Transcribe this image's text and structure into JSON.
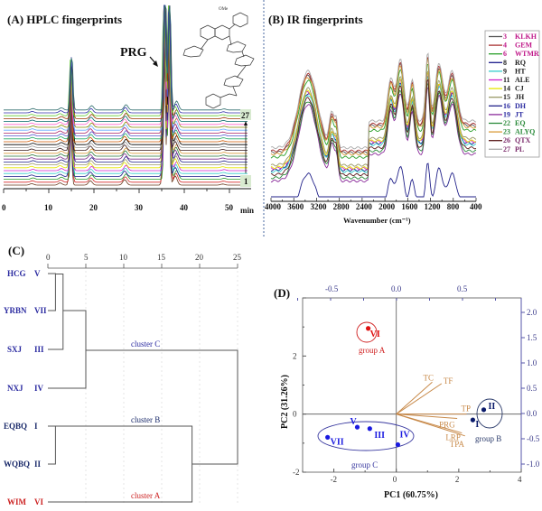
{
  "chart_data": [
    {
      "panel": "A",
      "type": "line",
      "title": "(A) HPLC fingerprints",
      "xlabel": "min",
      "ylabel": "",
      "xlim": [
        0,
        55
      ],
      "xticks": [
        0,
        10,
        20,
        30,
        40,
        50
      ],
      "annotation": "PRG",
      "stack_labels": {
        "top": "27",
        "bottom": "1"
      },
      "n_series": 27,
      "peaks_min": [
        6.2,
        12.5,
        14.8,
        19.2,
        26.8,
        35.5,
        36.5,
        38.0,
        48.5
      ],
      "peak_heights": [
        0.04,
        0.06,
        0.7,
        0.12,
        0.15,
        1.0,
        0.85,
        0.25,
        0.03
      ],
      "series_colors": [
        "#6b3a1e",
        "#d62a2a",
        "#2a9a2a",
        "#1a1a8a",
        "#33cccc",
        "#cc22cc",
        "#e6e600",
        "#999966",
        "#22228a",
        "#7a2a8a",
        "#2a7a3a",
        "#d89a3a",
        "#3a1a1a",
        "#999999",
        "#000000",
        "#cc5500",
        "#22aa66",
        "#5555cc",
        "#aa2266",
        "#66aaff",
        "#888800",
        "#ff66cc",
        "#006666",
        "#993300",
        "#66cc33",
        "#3333aa",
        "#2a6a6a"
      ]
    },
    {
      "panel": "B",
      "type": "line",
      "title": "(B) IR fingerprints",
      "xlabel": "Wavenumber (cm⁻¹)",
      "xlim": [
        4000,
        400
      ],
      "xticks": [
        4000,
        3600,
        3200,
        2800,
        2400,
        2000,
        1600,
        1200,
        800,
        400
      ],
      "legend_position": "right",
      "legend": [
        {
          "num": "3",
          "name": "KLKH",
          "color": "#555555",
          "label_color": "#c0198a"
        },
        {
          "num": "4",
          "name": "GEM",
          "color": "#a83232",
          "label_color": "#c0198a"
        },
        {
          "num": "6",
          "name": "WTMR",
          "color": "#2aa02a",
          "label_color": "#c0198a"
        },
        {
          "num": "8",
          "name": "RQ",
          "color": "#1a1a8a",
          "label_color": "#222222"
        },
        {
          "num": "9",
          "name": "HT",
          "color": "#33cccc",
          "label_color": "#222222"
        },
        {
          "num": "11",
          "name": "ALE",
          "color": "#cc22cc",
          "label_color": "#222222"
        },
        {
          "num": "14",
          "name": "CJ",
          "color": "#e6e600",
          "label_color": "#222222"
        },
        {
          "num": "15",
          "name": "JH",
          "color": "#999966",
          "label_color": "#222222"
        },
        {
          "num": "16",
          "name": "DH",
          "color": "#22228a",
          "label_color": "#2a2aa0"
        },
        {
          "num": "19",
          "name": "JT",
          "color": "#8a2a9a",
          "label_color": "#2a2aa0"
        },
        {
          "num": "22",
          "name": "EQ",
          "color": "#2a8a3a",
          "label_color": "#2a8a3a"
        },
        {
          "num": "23",
          "name": "ALYQ",
          "color": "#d89a3a",
          "label_color": "#2a8a3a"
        },
        {
          "num": "26",
          "name": "QTX",
          "color": "#5a1a1a",
          "label_color": "#7a2a6a"
        },
        {
          "num": "27",
          "name": "PL",
          "color": "#aaaaaa",
          "label_color": "#7a2a6a"
        }
      ]
    },
    {
      "panel": "C",
      "type": "dendrogram",
      "title": "(C)",
      "xlim": [
        0,
        25
      ],
      "xticks": [
        0,
        5,
        10,
        15,
        20,
        25
      ],
      "leaves": [
        {
          "name": "HCG",
          "roman": "V",
          "color": "#2a2aa0"
        },
        {
          "name": "YRBN",
          "roman": "VII",
          "color": "#2a2aa0"
        },
        {
          "name": "SXJ",
          "roman": "III",
          "color": "#2a2aa0"
        },
        {
          "name": "NXJ",
          "roman": "IV",
          "color": "#2a2aa0"
        },
        {
          "name": "EQBQ",
          "roman": "I",
          "color": "#1a2a6a"
        },
        {
          "name": "WQBQ",
          "roman": "II",
          "color": "#1a2a6a"
        },
        {
          "name": "WIM",
          "roman": "VI",
          "color": "#cc2222"
        }
      ],
      "merges": [
        {
          "a": 0,
          "b": 1,
          "height": 1
        },
        {
          "a": "01",
          "b": 2,
          "height": 2
        },
        {
          "a": "012",
          "b": 3,
          "height": 5
        },
        {
          "a": 4,
          "b": 5,
          "height": 1
        },
        {
          "a": "45",
          "b": 6,
          "height": 19
        },
        {
          "a": "0123",
          "b": "456",
          "height": 25
        }
      ],
      "cluster_labels": [
        {
          "text": "cluster C",
          "color": "#2a2aa0"
        },
        {
          "text": "cluster B",
          "color": "#1a2a6a"
        },
        {
          "text": "cluster A",
          "color": "#cc2222"
        }
      ]
    },
    {
      "panel": "D",
      "type": "scatter",
      "title": "(D)",
      "xlabel": "PC1 (60.75%)",
      "ylabel": "PC2 (31.26%)",
      "xlim": [
        -3,
        4
      ],
      "ylim": [
        -2,
        4
      ],
      "xticks": [
        -2,
        0,
        2,
        4
      ],
      "yticks": [
        -2,
        0,
        2
      ],
      "top_xlim": [
        -0.75,
        0.95
      ],
      "top_xticks": [
        -0.5,
        0.0,
        0.5
      ],
      "right_ylim": [
        -1.15,
        2.25
      ],
      "right_yticks": [
        -1.0,
        -0.5,
        0.0,
        0.5,
        1.0,
        1.5,
        2.0
      ],
      "points": [
        {
          "label": "VI",
          "x": -0.9,
          "y": 2.95,
          "color": "#e01010",
          "group": "A"
        },
        {
          "label": "II",
          "x": 2.8,
          "y": 0.15,
          "color": "#0a1a6a",
          "group": "B"
        },
        {
          "label": "I",
          "x": 2.45,
          "y": -0.2,
          "color": "#0a1a6a",
          "group": "B"
        },
        {
          "label": "V",
          "x": -1.25,
          "y": -0.45,
          "color": "#1a1ae0",
          "group": "C"
        },
        {
          "label": "III",
          "x": -0.85,
          "y": -0.5,
          "color": "#1a1ae0",
          "group": "C"
        },
        {
          "label": "VII",
          "x": -2.2,
          "y": -0.8,
          "color": "#1a1ae0",
          "group": "C"
        },
        {
          "label": "IV",
          "x": 0.05,
          "y": -1.05,
          "color": "#1a1ae0",
          "group": "C"
        }
      ],
      "loadings": [
        {
          "label": "TC",
          "x": 1.15,
          "y": 1.1
        },
        {
          "label": "TF",
          "x": 1.45,
          "y": 1.05
        },
        {
          "label": "TP",
          "x": 2.25,
          "y": 0.0
        },
        {
          "label": "PRG",
          "x": 1.95,
          "y": -0.15
        },
        {
          "label": "LRP",
          "x": 2.1,
          "y": -0.65
        },
        {
          "label": "TPA",
          "x": 2.2,
          "y": -0.75
        }
      ],
      "loading_color": "#c88a4a",
      "groups": [
        {
          "label": "group A",
          "color": "#d02020"
        },
        {
          "label": "group B",
          "color": "#2a3a6a"
        },
        {
          "label": "group C",
          "color": "#3a3aa0"
        }
      ]
    }
  ]
}
